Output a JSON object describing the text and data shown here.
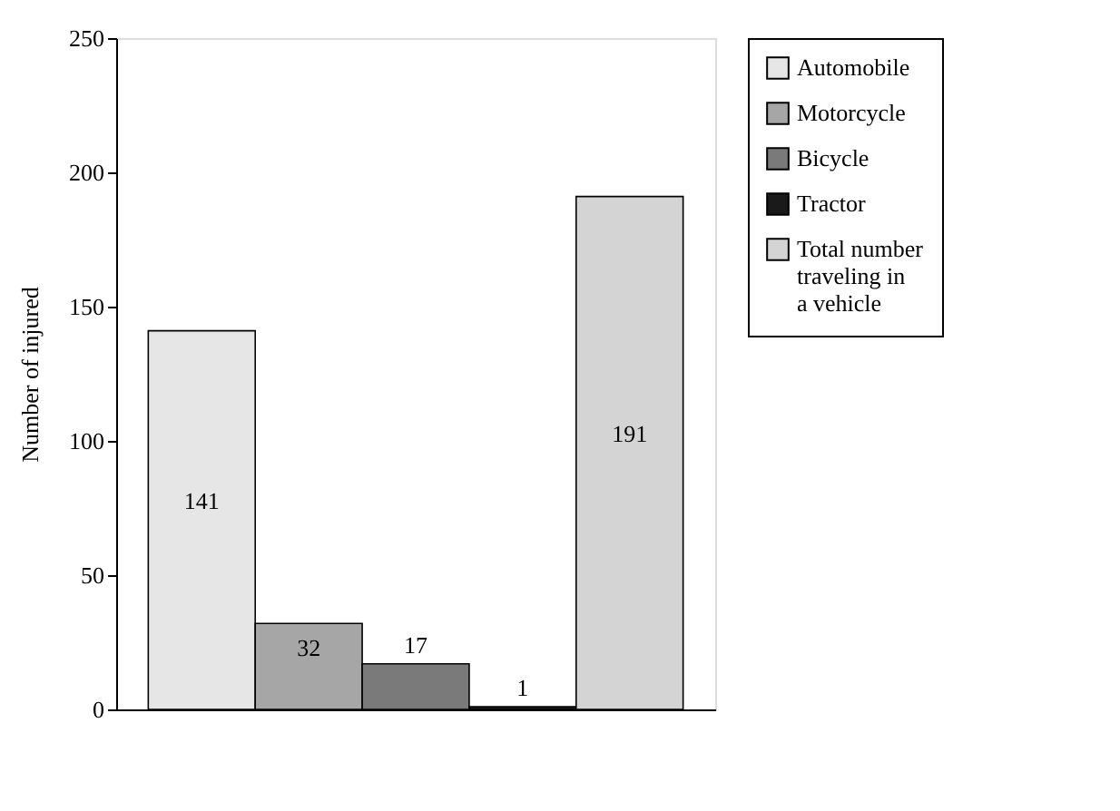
{
  "chart_data": {
    "type": "bar",
    "ylabel": "Number of injured",
    "categories": [
      null,
      null,
      null,
      null,
      null
    ],
    "series": [
      {
        "name": "Automobile",
        "color": "#e6e6e6",
        "values": [
          141,
          null,
          null,
          null,
          null
        ]
      },
      {
        "name": "Motorcycle",
        "color": "#a6a6a6",
        "values": [
          null,
          32,
          null,
          null,
          null
        ]
      },
      {
        "name": "Bicycle",
        "color": "#7a7a7a",
        "values": [
          null,
          null,
          17,
          null,
          null
        ]
      },
      {
        "name": "Tractor",
        "color": "#1a1a1a",
        "values": [
          null,
          null,
          null,
          1,
          null
        ]
      },
      {
        "name": "Total number traveling in a vehicle",
        "color": "#d4d4d4",
        "values": [
          null,
          null,
          null,
          null,
          191
        ]
      }
    ],
    "ylim": [
      0,
      250
    ],
    "yticks": [
      0,
      50,
      100,
      150,
      200,
      250
    ],
    "data_labels": true,
    "legend": "right",
    "grid": false,
    "tick_labels": "y"
  }
}
